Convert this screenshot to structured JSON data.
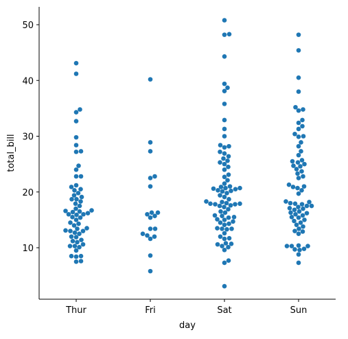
{
  "chart_data": {
    "type": "swarm",
    "x_label": "day",
    "y_label": "total_bill",
    "categories": [
      "Thur",
      "Fri",
      "Sat",
      "Sun"
    ],
    "color": "#1f77b4",
    "values": [
      [
        7.5,
        7.6,
        8.4,
        8.5,
        8.5,
        9.5,
        10.1,
        10.3,
        10.3,
        10.6,
        11.0,
        11.2,
        11.4,
        11.9,
        12.0,
        12.5,
        12.7,
        13.0,
        13.0,
        13.1,
        13.4,
        13.5,
        14.0,
        14.3,
        14.5,
        15.0,
        15.4,
        15.5,
        15.9,
        16.0,
        16.0,
        16.2,
        16.4,
        16.5,
        16.6,
        16.7,
        17.0,
        17.5,
        17.9,
        18.3,
        18.7,
        18.7,
        19.1,
        19.4,
        19.8,
        20.3,
        20.5,
        20.9,
        21.2,
        22.8,
        22.8,
        24.0,
        24.7,
        27.2,
        27.3,
        28.4,
        29.8,
        32.7,
        34.3,
        34.8,
        41.2,
        43.1
      ],
      [
        5.8,
        8.6,
        11.6,
        12.0,
        12.2,
        12.5,
        13.4,
        13.4,
        15.4,
        15.7,
        16.0,
        16.3,
        16.3,
        21.0,
        22.5,
        22.8,
        27.3,
        28.9,
        40.2
      ],
      [
        3.1,
        7.3,
        7.7,
        9.6,
        10.1,
        10.3,
        10.6,
        10.7,
        10.8,
        11.6,
        11.7,
        12.0,
        12.6,
        13.3,
        13.4,
        13.4,
        13.5,
        14.1,
        14.3,
        14.5,
        14.7,
        15.0,
        15.1,
        15.4,
        15.5,
        15.7,
        15.8,
        16.3,
        16.5,
        16.9,
        17.3,
        17.5,
        17.6,
        17.8,
        17.8,
        17.9,
        17.9,
        18.0,
        18.2,
        18.3,
        18.7,
        19.1,
        19.4,
        19.8,
        20.1,
        20.2,
        20.3,
        20.5,
        20.6,
        20.7,
        20.7,
        20.9,
        21.0,
        21.5,
        22.1,
        22.7,
        23.1,
        24.0,
        24.5,
        25.0,
        25.3,
        25.6,
        26.0,
        26.4,
        26.9,
        27.2,
        28.0,
        28.2,
        28.4,
        30.0,
        31.3,
        32.9,
        35.8,
        38.1,
        38.7,
        39.4,
        44.3,
        48.2,
        48.3,
        50.8
      ],
      [
        7.3,
        8.8,
        9.6,
        9.7,
        9.8,
        10.3,
        10.3,
        10.3,
        10.4,
        12.5,
        12.9,
        13.0,
        13.4,
        13.8,
        14.1,
        14.5,
        14.8,
        15.0,
        15.4,
        15.5,
        15.8,
        16.0,
        16.2,
        16.3,
        16.5,
        16.8,
        17.0,
        17.1,
        17.3,
        17.5,
        17.5,
        17.8,
        17.9,
        18.0,
        18.2,
        18.3,
        19.7,
        20.3,
        20.7,
        20.9,
        21.0,
        21.3,
        22.5,
        22.8,
        23.3,
        23.7,
        24.1,
        24.6,
        24.7,
        25.0,
        25.3,
        25.5,
        25.7,
        26.6,
        27.3,
        28.2,
        28.9,
        29.9,
        30.0,
        30.4,
        31.3,
        31.8,
        32.4,
        32.9,
        34.6,
        34.8,
        35.2,
        38.0,
        40.5,
        45.4,
        48.2
      ]
    ],
    "ylim": [
      0.77,
      53.2
    ],
    "yticks": [
      10,
      20,
      30,
      40,
      50
    ]
  }
}
